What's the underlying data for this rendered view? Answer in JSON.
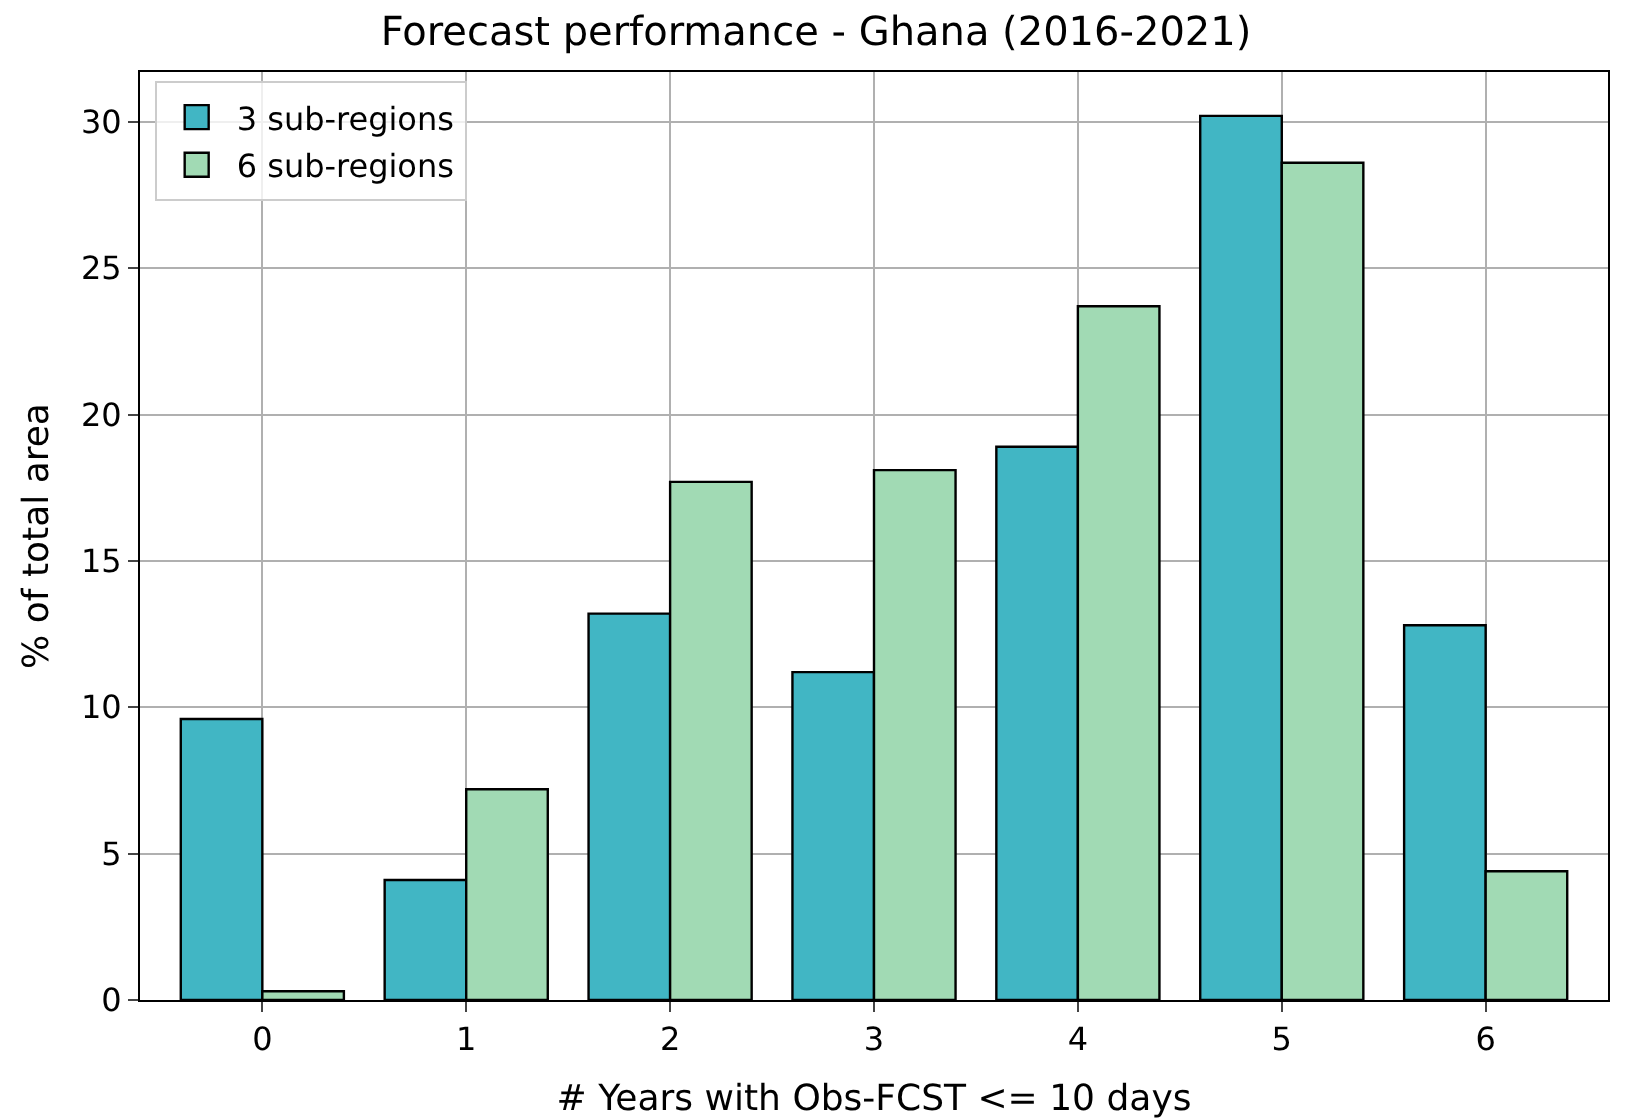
{
  "chart_data": {
    "type": "bar",
    "title": "Forecast performance - Ghana (2016-2021)",
    "xlabel": "# Years with Obs-FCST <= 10 days",
    "ylabel": "% of total area",
    "categories": [
      "0",
      "1",
      "2",
      "3",
      "4",
      "5",
      "6"
    ],
    "series": [
      {
        "name": "3 sub-regions",
        "color": "#41b6c4",
        "values": [
          9.6,
          4.1,
          13.2,
          11.2,
          18.9,
          30.2,
          12.8
        ]
      },
      {
        "name": "6 sub-regions",
        "color": "#a1dab4",
        "values": [
          0.3,
          7.2,
          17.7,
          18.1,
          23.7,
          28.6,
          4.4
        ]
      }
    ],
    "ylim": [
      0,
      31.7
    ],
    "yticks": [
      0,
      5,
      10,
      15,
      20,
      25,
      30
    ],
    "grid": true,
    "legend": "top left"
  }
}
